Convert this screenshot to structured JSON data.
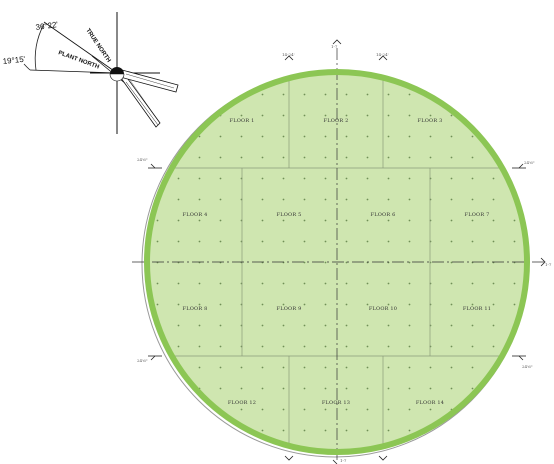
{
  "compass": {
    "angle_top": "36°22'",
    "angle_left": "19°15'",
    "true_north": "TRUE NORTH",
    "plant_north": "PLANT NORTH",
    "arrow_icon": "north-arrow-icon"
  },
  "grid_marks": {
    "top_center": "1-7",
    "top_left": "14-24'",
    "top_right": "14-24'",
    "left_upper": "24'6\"",
    "left_lower": "24'6\"",
    "right_upper": "24'6\"",
    "right_lower": "24'6\"",
    "right_center": "1-7",
    "bottom_center": "1-7"
  },
  "floors": [
    {
      "id": "floor-1",
      "label": "FLOOR 1"
    },
    {
      "id": "floor-2",
      "label": "FLOOR 2"
    },
    {
      "id": "floor-3",
      "label": "FLOOR 3"
    },
    {
      "id": "floor-4",
      "label": "FLOOR 4"
    },
    {
      "id": "floor-5",
      "label": "FLOOR 5"
    },
    {
      "id": "floor-6",
      "label": "FLOOR 6"
    },
    {
      "id": "floor-7",
      "label": "FLOOR 7"
    },
    {
      "id": "floor-8",
      "label": "FLOOR 8"
    },
    {
      "id": "floor-9",
      "label": "FLOOR 9"
    },
    {
      "id": "floor-10",
      "label": "FLOOR 10"
    },
    {
      "id": "floor-11",
      "label": "FLOOR 11"
    },
    {
      "id": "floor-12",
      "label": "FLOOR 12"
    },
    {
      "id": "floor-13",
      "label": "FLOOR 13"
    },
    {
      "id": "floor-14",
      "label": "FLOOR 14"
    }
  ],
  "colors": {
    "fill": "#cfe6b0",
    "rim": "#8cc654",
    "lines": "#8a9a7a"
  }
}
